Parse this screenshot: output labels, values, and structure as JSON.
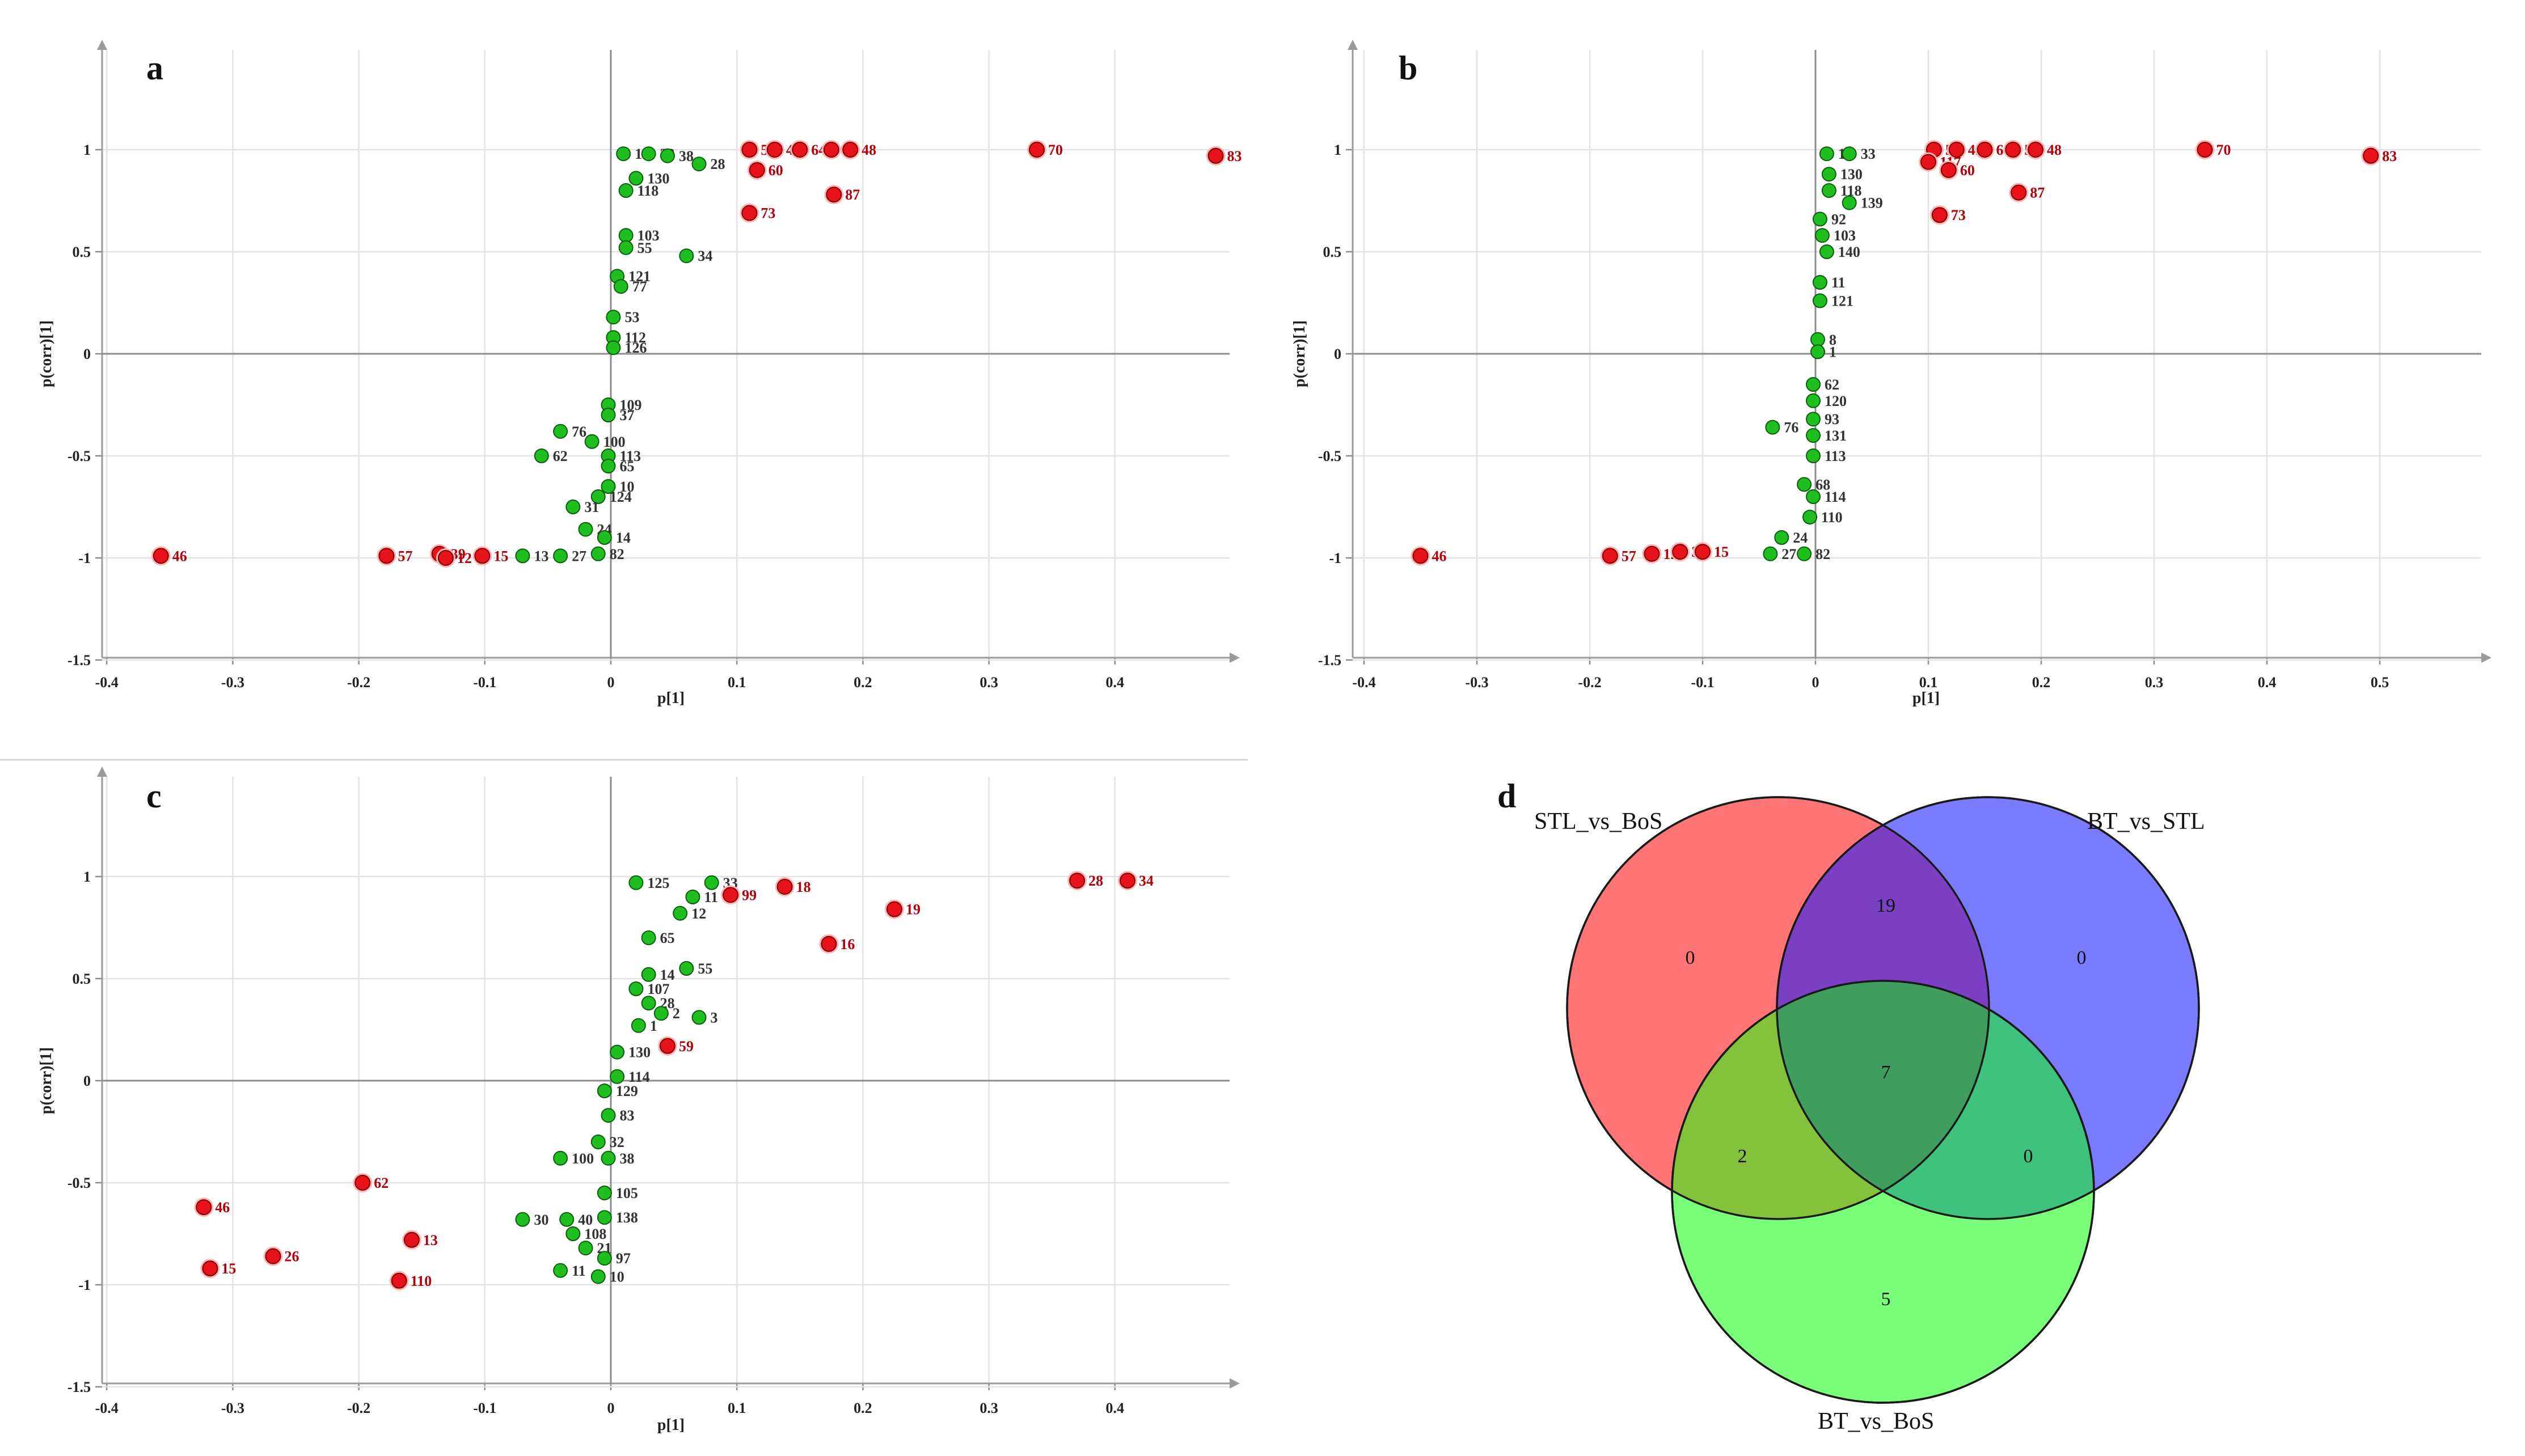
{
  "colors": {
    "sig_fill": "#e8121a",
    "sig_stroke": "#7a0000",
    "sig_label": "#b3000a",
    "ns_fill": "#1fbf1f",
    "ns_stroke": "#0b5e0b",
    "ns_label": "#333333",
    "venn_red": "#ff7575",
    "venn_blue": "#7b7bff",
    "venn_green": "#7aff7a",
    "venn_purple": "#7b3fc4",
    "venn_olive": "#84c23c",
    "venn_teal": "#3fc27d",
    "venn_center": "#3f9e5e"
  },
  "chart_data": [
    {
      "panel": "a",
      "type": "scatter",
      "xlabel": "p[1]",
      "ylabel": "p(corr)[1]",
      "xlim": [
        -0.4,
        0.5
      ],
      "ylim": [
        -1.5,
        1.5
      ],
      "xticks": [
        "-0.4",
        "-0.3",
        "-0.2",
        "-0.1",
        "0",
        "0.1",
        "0.2",
        "0.3",
        "0.4"
      ],
      "yticks": [
        "-1.5",
        "-1",
        "-0.5",
        "0",
        "0.5",
        "1"
      ],
      "grid": true,
      "series": [
        {
          "group": "significant",
          "points": [
            {
              "x": -0.357,
              "y": -0.99,
              "label": "46"
            },
            {
              "x": -0.178,
              "y": -0.99,
              "label": "57"
            },
            {
              "x": -0.136,
              "y": -0.98,
              "label": "39"
            },
            {
              "x": -0.131,
              "y": -1.0,
              "label": "12"
            },
            {
              "x": -0.102,
              "y": -0.99,
              "label": "15"
            },
            {
              "x": 0.11,
              "y": 1.0,
              "label": "51"
            },
            {
              "x": 0.13,
              "y": 1.0,
              "label": "45"
            },
            {
              "x": 0.15,
              "y": 1.0,
              "label": "64"
            },
            {
              "x": 0.175,
              "y": 1.0,
              "label": "59"
            },
            {
              "x": 0.19,
              "y": 1.0,
              "label": "48"
            },
            {
              "x": 0.116,
              "y": 0.9,
              "label": "60"
            },
            {
              "x": 0.11,
              "y": 0.69,
              "label": "73"
            },
            {
              "x": 0.177,
              "y": 0.78,
              "label": "87"
            },
            {
              "x": 0.338,
              "y": 1.0,
              "label": "70"
            },
            {
              "x": 0.48,
              "y": 0.97,
              "label": "83"
            }
          ]
        },
        {
          "group": "non-significant",
          "points": [
            {
              "x": 0.01,
              "y": 0.98,
              "label": "19"
            },
            {
              "x": 0.03,
              "y": 0.98,
              "label": "33"
            },
            {
              "x": 0.045,
              "y": 0.97,
              "label": "38"
            },
            {
              "x": 0.07,
              "y": 0.93,
              "label": "28"
            },
            {
              "x": 0.02,
              "y": 0.86,
              "label": "130"
            },
            {
              "x": 0.012,
              "y": 0.8,
              "label": "118"
            },
            {
              "x": 0.012,
              "y": 0.58,
              "label": "103"
            },
            {
              "x": 0.012,
              "y": 0.52,
              "label": "55"
            },
            {
              "x": 0.06,
              "y": 0.48,
              "label": "34"
            },
            {
              "x": 0.005,
              "y": 0.38,
              "label": "121"
            },
            {
              "x": 0.008,
              "y": 0.33,
              "label": "77"
            },
            {
              "x": 0.002,
              "y": 0.18,
              "label": "53"
            },
            {
              "x": 0.002,
              "y": 0.08,
              "label": "112"
            },
            {
              "x": 0.002,
              "y": 0.03,
              "label": "126"
            },
            {
              "x": -0.002,
              "y": -0.25,
              "label": "109"
            },
            {
              "x": -0.002,
              "y": -0.3,
              "label": "37"
            },
            {
              "x": -0.04,
              "y": -0.38,
              "label": "76"
            },
            {
              "x": -0.015,
              "y": -0.43,
              "label": "100"
            },
            {
              "x": -0.055,
              "y": -0.5,
              "label": "62"
            },
            {
              "x": -0.002,
              "y": -0.5,
              "label": "113"
            },
            {
              "x": -0.002,
              "y": -0.55,
              "label": "65"
            },
            {
              "x": -0.002,
              "y": -0.65,
              "label": "10"
            },
            {
              "x": -0.01,
              "y": -0.7,
              "label": "124"
            },
            {
              "x": -0.03,
              "y": -0.75,
              "label": "31"
            },
            {
              "x": -0.02,
              "y": -0.86,
              "label": "24"
            },
            {
              "x": -0.005,
              "y": -0.9,
              "label": "14"
            },
            {
              "x": -0.04,
              "y": -0.99,
              "label": "27"
            },
            {
              "x": -0.07,
              "y": -0.99,
              "label": "13"
            },
            {
              "x": -0.01,
              "y": -0.98,
              "label": "82"
            }
          ]
        }
      ]
    },
    {
      "panel": "b",
      "type": "scatter",
      "xlabel": "p[1]",
      "ylabel": "p(corr)[1]",
      "xlim": [
        -0.4,
        0.6
      ],
      "ylim": [
        -1.5,
        1.5
      ],
      "xticks": [
        "-0.4",
        "-0.3",
        "-0.2",
        "-0.1",
        "0",
        "0.1",
        "0.2",
        "0.3",
        "0.4",
        "0.5"
      ],
      "yticks": [
        "-1.5",
        "-1",
        "-0.5",
        "0",
        "0.5",
        "1"
      ],
      "grid": true,
      "series": [
        {
          "group": "significant",
          "points": [
            {
              "x": -0.35,
              "y": -0.99,
              "label": "46"
            },
            {
              "x": -0.182,
              "y": -0.99,
              "label": "57"
            },
            {
              "x": -0.145,
              "y": -0.98,
              "label": "12"
            },
            {
              "x": -0.12,
              "y": -0.97,
              "label": "39"
            },
            {
              "x": -0.1,
              "y": -0.97,
              "label": "15"
            },
            {
              "x": 0.105,
              "y": 1.0,
              "label": "51"
            },
            {
              "x": 0.125,
              "y": 1.0,
              "label": "45"
            },
            {
              "x": 0.15,
              "y": 1.0,
              "label": "64"
            },
            {
              "x": 0.175,
              "y": 1.0,
              "label": "59"
            },
            {
              "x": 0.195,
              "y": 1.0,
              "label": "48"
            },
            {
              "x": 0.1,
              "y": 0.94,
              "label": "117"
            },
            {
              "x": 0.118,
              "y": 0.9,
              "label": "60"
            },
            {
              "x": 0.11,
              "y": 0.68,
              "label": "73"
            },
            {
              "x": 0.18,
              "y": 0.79,
              "label": "87"
            },
            {
              "x": 0.345,
              "y": 1.0,
              "label": "70"
            },
            {
              "x": 0.492,
              "y": 0.97,
              "label": "83"
            }
          ]
        },
        {
          "group": "non-significant",
          "points": [
            {
              "x": 0.01,
              "y": 0.98,
              "label": "19"
            },
            {
              "x": 0.03,
              "y": 0.98,
              "label": "33"
            },
            {
              "x": 0.012,
              "y": 0.88,
              "label": "130"
            },
            {
              "x": 0.012,
              "y": 0.8,
              "label": "118"
            },
            {
              "x": 0.03,
              "y": 0.74,
              "label": "139"
            },
            {
              "x": 0.004,
              "y": 0.66,
              "label": "92"
            },
            {
              "x": 0.006,
              "y": 0.58,
              "label": "103"
            },
            {
              "x": 0.01,
              "y": 0.5,
              "label": "140"
            },
            {
              "x": 0.004,
              "y": 0.35,
              "label": "11"
            },
            {
              "x": 0.004,
              "y": 0.26,
              "label": "121"
            },
            {
              "x": 0.002,
              "y": 0.07,
              "label": "8"
            },
            {
              "x": 0.002,
              "y": 0.01,
              "label": "1"
            },
            {
              "x": -0.002,
              "y": -0.15,
              "label": "62"
            },
            {
              "x": -0.002,
              "y": -0.23,
              "label": "120"
            },
            {
              "x": -0.002,
              "y": -0.32,
              "label": "93"
            },
            {
              "x": -0.038,
              "y": -0.36,
              "label": "76"
            },
            {
              "x": -0.002,
              "y": -0.4,
              "label": "131"
            },
            {
              "x": -0.002,
              "y": -0.5,
              "label": "113"
            },
            {
              "x": -0.01,
              "y": -0.64,
              "label": "68"
            },
            {
              "x": -0.002,
              "y": -0.7,
              "label": "114"
            },
            {
              "x": -0.005,
              "y": -0.8,
              "label": "110"
            },
            {
              "x": -0.03,
              "y": -0.9,
              "label": "24"
            },
            {
              "x": -0.04,
              "y": -0.98,
              "label": "27"
            },
            {
              "x": -0.01,
              "y": -0.98,
              "label": "82"
            }
          ]
        }
      ]
    },
    {
      "panel": "c",
      "type": "scatter",
      "xlabel": "p[1]",
      "ylabel": "p(corr)[1]",
      "xlim": [
        -0.4,
        0.5
      ],
      "ylim": [
        -1.5,
        1.5
      ],
      "xticks": [
        "-0.4",
        "-0.3",
        "-0.2",
        "-0.1",
        "0",
        "0.1",
        "0.2",
        "0.3",
        "0.4"
      ],
      "yticks": [
        "-1.5",
        "-1",
        "-0.5",
        "0",
        "0.5",
        "1"
      ],
      "grid": true,
      "series": [
        {
          "group": "significant",
          "points": [
            {
              "x": -0.323,
              "y": -0.62,
              "label": "46"
            },
            {
              "x": -0.318,
              "y": -0.92,
              "label": "15"
            },
            {
              "x": -0.268,
              "y": -0.86,
              "label": "26"
            },
            {
              "x": -0.197,
              "y": -0.5,
              "label": "62"
            },
            {
              "x": -0.158,
              "y": -0.78,
              "label": "13"
            },
            {
              "x": -0.168,
              "y": -0.98,
              "label": "110"
            },
            {
              "x": 0.045,
              "y": 0.17,
              "label": "59"
            },
            {
              "x": 0.095,
              "y": 0.91,
              "label": "99"
            },
            {
              "x": 0.138,
              "y": 0.95,
              "label": "18"
            },
            {
              "x": 0.173,
              "y": 0.67,
              "label": "16"
            },
            {
              "x": 0.225,
              "y": 0.84,
              "label": "19"
            },
            {
              "x": 0.37,
              "y": 0.98,
              "label": "28"
            },
            {
              "x": 0.41,
              "y": 0.98,
              "label": "34"
            }
          ]
        },
        {
          "group": "non-significant",
          "points": [
            {
              "x": 0.02,
              "y": 0.97,
              "label": "125"
            },
            {
              "x": 0.08,
              "y": 0.97,
              "label": "33"
            },
            {
              "x": 0.065,
              "y": 0.9,
              "label": "11"
            },
            {
              "x": 0.055,
              "y": 0.82,
              "label": "12"
            },
            {
              "x": 0.03,
              "y": 0.7,
              "label": "65"
            },
            {
              "x": 0.06,
              "y": 0.55,
              "label": "55"
            },
            {
              "x": 0.03,
              "y": 0.52,
              "label": "14"
            },
            {
              "x": 0.02,
              "y": 0.45,
              "label": "107"
            },
            {
              "x": 0.03,
              "y": 0.38,
              "label": "28"
            },
            {
              "x": 0.07,
              "y": 0.31,
              "label": "3"
            },
            {
              "x": 0.04,
              "y": 0.33,
              "label": "2"
            },
            {
              "x": 0.022,
              "y": 0.27,
              "label": "1"
            },
            {
              "x": 0.005,
              "y": 0.14,
              "label": "130"
            },
            {
              "x": 0.005,
              "y": 0.02,
              "label": "114"
            },
            {
              "x": -0.005,
              "y": -0.05,
              "label": "129"
            },
            {
              "x": -0.002,
              "y": -0.17,
              "label": "83"
            },
            {
              "x": -0.01,
              "y": -0.3,
              "label": "32"
            },
            {
              "x": -0.04,
              "y": -0.38,
              "label": "100"
            },
            {
              "x": -0.002,
              "y": -0.38,
              "label": "38"
            },
            {
              "x": -0.005,
              "y": -0.55,
              "label": "105"
            },
            {
              "x": -0.005,
              "y": -0.67,
              "label": "138"
            },
            {
              "x": -0.035,
              "y": -0.68,
              "label": "40"
            },
            {
              "x": -0.07,
              "y": -0.68,
              "label": "30"
            },
            {
              "x": -0.03,
              "y": -0.75,
              "label": "108"
            },
            {
              "x": -0.02,
              "y": -0.82,
              "label": "21"
            },
            {
              "x": -0.005,
              "y": -0.87,
              "label": "97"
            },
            {
              "x": -0.04,
              "y": -0.93,
              "label": "11"
            },
            {
              "x": -0.01,
              "y": -0.96,
              "label": "10"
            }
          ]
        }
      ]
    },
    {
      "panel": "d",
      "type": "venn",
      "sets": [
        "STL_vs_BoS",
        "BT_vs_STL",
        "BT_vs_BoS"
      ],
      "regions": {
        "STL_vs_BoS_only": "0",
        "BT_vs_STL_only": "0",
        "BT_vs_BoS_only": "5",
        "STL_vs_BoS_and_BT_vs_STL": "19",
        "STL_vs_BoS_and_BT_vs_BoS": "2",
        "BT_vs_STL_and_BT_vs_BoS": "0",
        "all_three": "7"
      }
    }
  ]
}
